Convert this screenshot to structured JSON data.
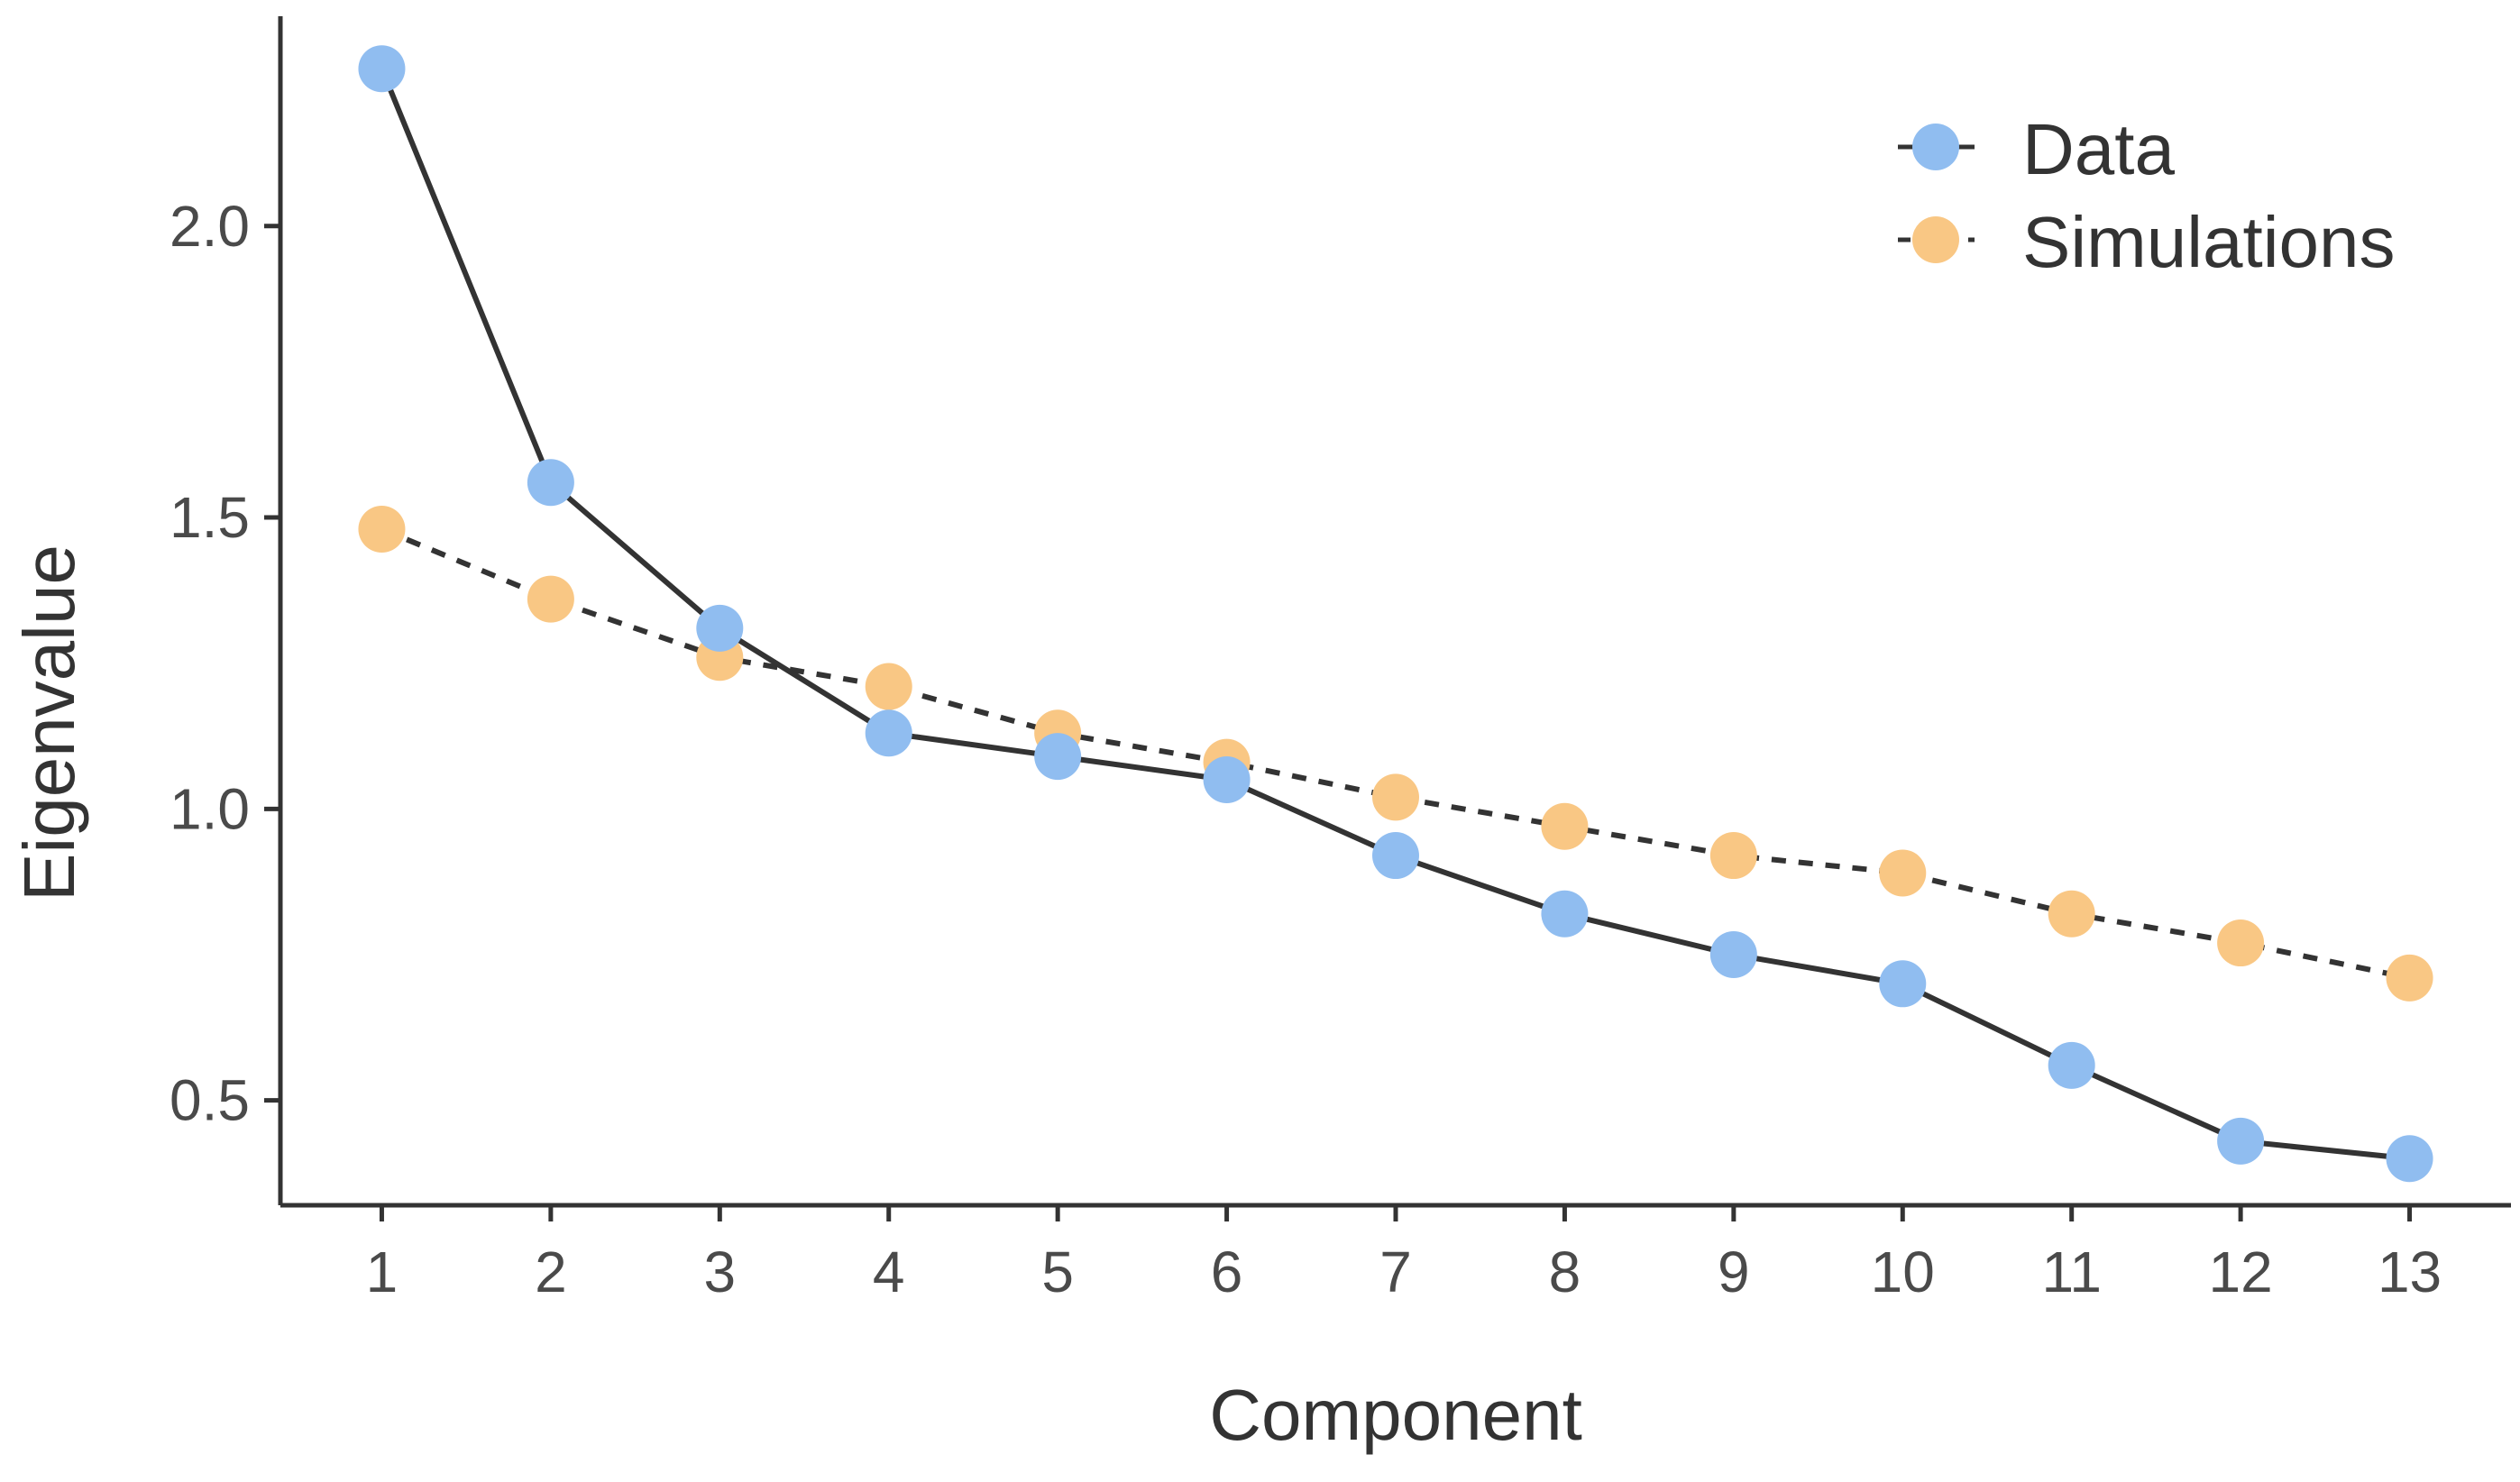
{
  "chart_data": {
    "type": "line",
    "xlabel": "Component",
    "ylabel": "Eigenvalue",
    "xlim": [
      0.4,
      13.6
    ],
    "ylim": [
      0.32,
      2.36
    ],
    "x": [
      1,
      2,
      3,
      4,
      5,
      6,
      7,
      8,
      9,
      10,
      11,
      12,
      13
    ],
    "x_tick_labels": [
      "1",
      "2",
      "3",
      "4",
      "5",
      "6",
      "7",
      "8",
      "9",
      "10",
      "11",
      "12",
      "13"
    ],
    "y_ticks": [
      0.5,
      1.0,
      1.5,
      2.0
    ],
    "y_tick_labels": [
      "0.5",
      "1.0",
      "1.5",
      "2.0"
    ],
    "grid": false,
    "legend_position": "top-right",
    "series": [
      {
        "name": "Data",
        "line_style": "solid",
        "marker_color": "#90bdf0",
        "line_color": "#333333",
        "values": [
          2.27,
          1.56,
          1.31,
          1.13,
          1.09,
          1.05,
          0.92,
          0.82,
          0.75,
          0.7,
          0.56,
          0.43,
          0.4
        ]
      },
      {
        "name": "Simulations",
        "line_style": "dashed",
        "marker_color": "#f9c784",
        "line_color": "#333333",
        "values": [
          1.48,
          1.36,
          1.26,
          1.21,
          1.13,
          1.08,
          1.02,
          0.97,
          0.92,
          0.89,
          0.82,
          0.77,
          0.71
        ]
      }
    ]
  }
}
